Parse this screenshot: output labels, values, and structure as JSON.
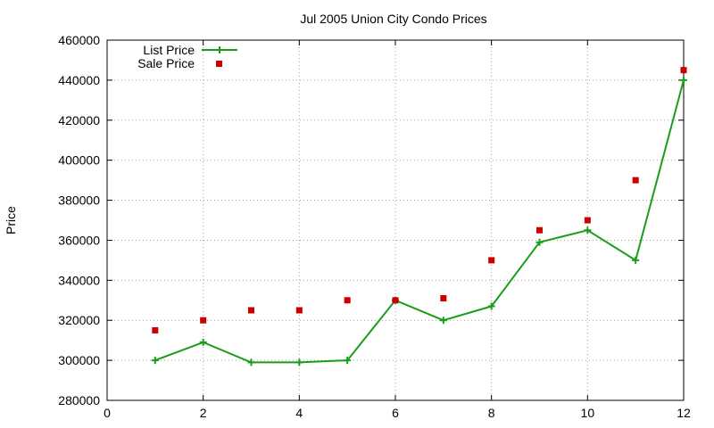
{
  "chart_data": {
    "type": "line",
    "title": "Jul 2005 Union City Condo Prices",
    "xlabel": "",
    "ylabel": "Price",
    "xlim": [
      0,
      12
    ],
    "ylim": [
      280000,
      460000
    ],
    "x_ticks": [
      "0",
      "2",
      "4",
      "6",
      "8",
      "10",
      "12"
    ],
    "y_ticks": [
      "280000",
      "300000",
      "320000",
      "340000",
      "360000",
      "380000",
      "400000",
      "420000",
      "440000",
      "460000"
    ],
    "grid": true,
    "legend_position": "top-left",
    "x": [
      1,
      2,
      3,
      4,
      5,
      6,
      7,
      8,
      9,
      10,
      11,
      12
    ],
    "series": [
      {
        "name": "List Price",
        "style": "lines+crosses",
        "color": "#1a9e1a",
        "values": [
          300000,
          309000,
          299000,
          299000,
          300000,
          330000,
          320000,
          327000,
          359000,
          365000,
          350000,
          440000
        ]
      },
      {
        "name": "Sale Price",
        "style": "square-points",
        "color": "#cc0000",
        "values": [
          315000,
          320000,
          325000,
          325000,
          330000,
          330000,
          331000,
          350000,
          365000,
          370000,
          390000,
          445000
        ]
      }
    ]
  }
}
